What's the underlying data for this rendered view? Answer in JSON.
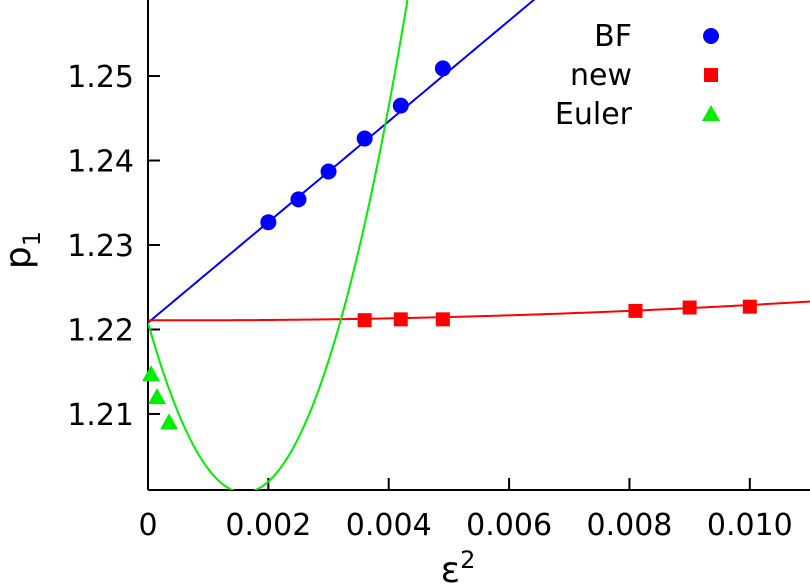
{
  "chart_data": {
    "type": "scatter",
    "xlabel": "ε",
    "xlabel_superscript": "2",
    "ylabel": "p",
    "ylabel_subscript": "1",
    "xlim": [
      0,
      0.011
    ],
    "ylim": [
      1.201,
      1.259
    ],
    "x_tick_labels": [
      "0",
      "0.002",
      "0.004",
      "0.006",
      "0.008",
      "0.010"
    ],
    "x_tick_values": [
      0,
      0.002,
      0.004,
      0.006,
      0.008,
      0.01
    ],
    "y_tick_labels": [
      "1.21",
      "1.22",
      "1.23",
      "1.24",
      "1.25"
    ],
    "y_tick_values": [
      1.21,
      1.22,
      1.23,
      1.24,
      1.25
    ],
    "grid": false,
    "legend_position": "top-right",
    "series": [
      {
        "name": "BF",
        "color": "#0000ff",
        "marker": "circle",
        "x": [
          0.002,
          0.0025,
          0.003,
          0.0036,
          0.0042,
          0.0049
        ],
        "y": [
          1.2327,
          1.2354,
          1.2387,
          1.2426,
          1.2465,
          1.2509
        ],
        "fit": {
          "kind": "linear",
          "intercept": 1.2208,
          "slope": 5.96
        }
      },
      {
        "name": "new",
        "color": "#ff0000",
        "marker": "square",
        "x": [
          0.0036,
          0.0042,
          0.0049,
          0.0081,
          0.009,
          0.01
        ],
        "y": [
          1.2211,
          1.2212,
          1.2212,
          1.2222,
          1.2226,
          1.2227
        ],
        "fit": {
          "kind": "quadratic",
          "a": 1.2211,
          "b": -0.03,
          "c": 21
        }
      },
      {
        "name": "Euler",
        "color": "#00ee00",
        "marker": "triangle",
        "x": [
          5e-05,
          0.00015,
          0.00035
        ],
        "y": [
          1.2147,
          1.212,
          1.209
        ],
        "fit": {
          "kind": "quadratic",
          "a": 1.2208,
          "b": -25.2,
          "c": 7900
        }
      }
    ]
  }
}
